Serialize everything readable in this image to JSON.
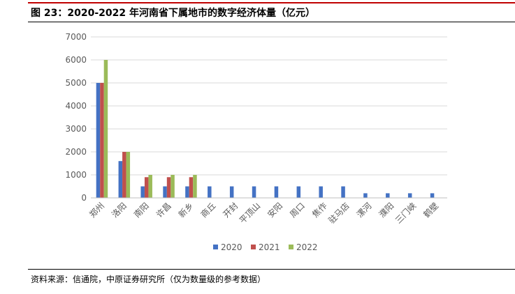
{
  "figure": {
    "title": "图 23：2020-2022 年河南省下属地市的数字经济体量（亿元）",
    "source": "资料来源：信通院，中原证券研究所（仅为数量级的参考数据）"
  },
  "colors": {
    "accent_rule": "#c00000",
    "series_2020": "#4472c4",
    "series_2021": "#c0504d",
    "series_2022": "#9bbb59",
    "grid": "#d9d9d9",
    "tick_text": "#595959"
  },
  "chart_data": {
    "type": "bar",
    "title": "",
    "xlabel": "",
    "ylabel": "",
    "ylim": [
      0,
      7000
    ],
    "yticks": [
      0,
      1000,
      2000,
      3000,
      4000,
      5000,
      6000,
      7000
    ],
    "grid": true,
    "legend": "bottom-center",
    "categories": [
      "郑州",
      "洛阳",
      "南阳",
      "许昌",
      "新乡",
      "商丘",
      "开封",
      "平顶山",
      "安阳",
      "周口",
      "焦作",
      "驻马店",
      "漯河",
      "濮阳",
      "三门峡",
      "鹤壁"
    ],
    "series": [
      {
        "name": "2020",
        "color": "#4472c4",
        "values": [
          5000,
          1600,
          500,
          500,
          500,
          500,
          500,
          500,
          500,
          500,
          500,
          500,
          200,
          200,
          200,
          200
        ]
      },
      {
        "name": "2021",
        "color": "#c0504d",
        "values": [
          5000,
          2000,
          900,
          900,
          900,
          null,
          null,
          null,
          null,
          null,
          null,
          null,
          null,
          null,
          null,
          null
        ]
      },
      {
        "name": "2022",
        "color": "#9bbb59",
        "values": [
          6000,
          2000,
          1000,
          1000,
          1000,
          null,
          null,
          null,
          null,
          null,
          null,
          null,
          null,
          null,
          null,
          null
        ]
      }
    ]
  }
}
